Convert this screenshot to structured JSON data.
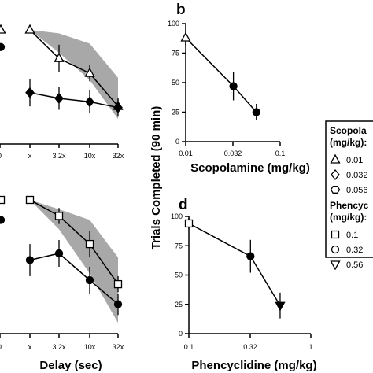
{
  "panel_letters": {
    "b": "b",
    "d": "d"
  },
  "left_axis": {
    "xlabel": "Delay (sec)",
    "ticks": [
      "x",
      "3.2x",
      "10x",
      "32x"
    ],
    "top_cut_tick": "0",
    "bottom_cut_tick": "0"
  },
  "shared_ylabel": "Trials Completed (90 min)",
  "legend": {
    "group1_title_line1": "Scopola",
    "group1_title_line2": "(mg/kg):",
    "group1_items": [
      "0.01",
      "0.032",
      "0.056"
    ],
    "group2_title_line1": "Phencyc",
    "group2_title_line2": "(mg/kg):",
    "group2_items": [
      "0.1",
      "0.32",
      "0.56"
    ]
  },
  "colors": {
    "band": "#a8a8a8",
    "line": "#000000",
    "open_fill": "#ffffff",
    "filled": "#000000"
  },
  "chart_data": [
    {
      "panel": "a (cropped)",
      "type": "line",
      "categories": [
        "x",
        "3.2x",
        "10x",
        "32x"
      ],
      "xlabel": "",
      "ylabel": "",
      "band": {
        "upper": [
          100,
          97,
          88,
          58
        ],
        "lower": [
          100,
          80,
          56,
          22
        ]
      },
      "series": [
        {
          "marker": "triangle-up",
          "filled": false,
          "values": [
            100,
            75,
            62,
            33
          ],
          "err": [
            0,
            12,
            7,
            6
          ]
        },
        {
          "marker": "diamond",
          "filled": true,
          "values": [
            45,
            40,
            37,
            32
          ],
          "err": [
            12,
            10,
            10,
            8
          ]
        }
      ],
      "partial_points": [
        {
          "marker": "triangle-up",
          "filled": false,
          "value": 100
        },
        {
          "marker": "circle",
          "filled": true,
          "value": 85
        }
      ]
    },
    {
      "panel": "b",
      "type": "line",
      "x": [
        0.01,
        0.032,
        0.056
      ],
      "xscale": "log",
      "xlim": [
        0.01,
        0.1
      ],
      "xticks": [
        "0.01",
        "0.032",
        "0.1"
      ],
      "xlabel": "Scopolamine (mg/kg)",
      "ylim": [
        0,
        100
      ],
      "yticks": [
        0,
        25,
        50,
        75,
        100
      ],
      "markers": [
        {
          "marker": "triangle-up",
          "filled": false
        },
        {
          "marker": "circle",
          "filled": true
        },
        {
          "marker": "circle",
          "filled": true
        }
      ],
      "values": [
        88,
        47,
        25
      ],
      "err": [
        7,
        12,
        7
      ]
    },
    {
      "panel": "c (cropped)",
      "type": "line",
      "categories": [
        "x",
        "3.2x",
        "10x",
        "32x"
      ],
      "xlabel": "Delay (sec)",
      "ylabel": "",
      "band": {
        "upper": [
          100,
          93,
          85,
          57
        ],
        "lower": [
          100,
          78,
          45,
          8
        ]
      },
      "series": [
        {
          "marker": "square",
          "filled": false,
          "values": [
            100,
            88,
            67,
            37
          ],
          "err": [
            0,
            6,
            10,
            6
          ]
        },
        {
          "marker": "circle",
          "filled": true,
          "values": [
            55,
            60,
            40,
            22
          ],
          "err": [
            12,
            10,
            10,
            8
          ]
        }
      ],
      "partial_points": [
        {
          "marker": "square",
          "filled": false,
          "value": 100
        },
        {
          "marker": "circle",
          "filled": true,
          "value": 85
        }
      ]
    },
    {
      "panel": "d",
      "type": "line",
      "x": [
        0.1,
        0.32,
        0.56
      ],
      "xscale": "log",
      "xlim": [
        0.1,
        1
      ],
      "xticks": [
        "0.1",
        "0.32",
        "1"
      ],
      "xlabel": "Phencyclidine (mg/kg)",
      "ylim": [
        0,
        100
      ],
      "yticks": [
        0,
        25,
        50,
        75,
        100
      ],
      "markers": [
        {
          "marker": "square",
          "filled": false
        },
        {
          "marker": "circle",
          "filled": true
        },
        {
          "marker": "triangle-down",
          "filled": true
        }
      ],
      "values": [
        94,
        66,
        24
      ],
      "err": [
        5,
        14,
        11
      ]
    }
  ]
}
